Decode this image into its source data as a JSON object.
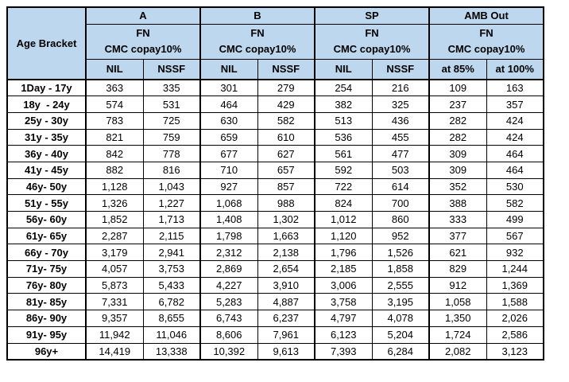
{
  "colors": {
    "header_bg": "#BDD7EE",
    "border": "#000000",
    "text": "#000000",
    "cell_bg": "#FFFFFF"
  },
  "table": {
    "corner_label": "Age Bracket",
    "groups": [
      {
        "label": "A",
        "plan_line1": "FN",
        "plan_line2": "CMC copay10%",
        "columns": [
          "NIL",
          "NSSF"
        ]
      },
      {
        "label": "B",
        "plan_line1": "FN",
        "plan_line2": "CMC copay10%",
        "columns": [
          "NIL",
          "NSSF"
        ]
      },
      {
        "label": "SP",
        "plan_line1": "FN",
        "plan_line2": "CMC copay10%",
        "columns": [
          "NIL",
          "NSSF"
        ]
      },
      {
        "label": "AMB Out",
        "plan_line1": "FN",
        "plan_line2": "CMC copay10%",
        "columns": [
          "at 85%",
          "at 100%"
        ]
      }
    ],
    "rows": [
      {
        "age": "1Day - 17y",
        "values": [
          "363",
          "335",
          "301",
          "279",
          "254",
          "216",
          "109",
          "163"
        ]
      },
      {
        "age": "18y  - 24y",
        "values": [
          "574",
          "531",
          "464",
          "429",
          "382",
          "325",
          "237",
          "357"
        ]
      },
      {
        "age": "25y - 30y",
        "values": [
          "783",
          "725",
          "630",
          "582",
          "513",
          "436",
          "282",
          "424"
        ]
      },
      {
        "age": "31y - 35y",
        "values": [
          "821",
          "759",
          "659",
          "610",
          "536",
          "455",
          "282",
          "424"
        ]
      },
      {
        "age": "36y - 40y",
        "values": [
          "842",
          "778",
          "677",
          "627",
          "561",
          "477",
          "309",
          "464"
        ]
      },
      {
        "age": "41y - 45y",
        "values": [
          "882",
          "816",
          "710",
          "657",
          "592",
          "503",
          "309",
          "464"
        ]
      },
      {
        "age": "46y- 50y",
        "values": [
          "1,128",
          "1,043",
          "927",
          "857",
          "722",
          "614",
          "352",
          "530"
        ]
      },
      {
        "age": "51y - 55y",
        "values": [
          "1,326",
          "1,227",
          "1,068",
          "988",
          "824",
          "700",
          "388",
          "582"
        ]
      },
      {
        "age": "56y- 60y",
        "values": [
          "1,852",
          "1,713",
          "1,408",
          "1,302",
          "1,012",
          "860",
          "333",
          "499"
        ]
      },
      {
        "age": "61y- 65y",
        "values": [
          "2,287",
          "2,115",
          "1,798",
          "1,663",
          "1,120",
          "952",
          "377",
          "567"
        ]
      },
      {
        "age": "66y - 70y",
        "values": [
          "3,179",
          "2,941",
          "2,312",
          "2,138",
          "1,796",
          "1,526",
          "621",
          "932"
        ]
      },
      {
        "age": "71y- 75y",
        "values": [
          "4,057",
          "3,753",
          "2,869",
          "2,654",
          "2,185",
          "1,858",
          "829",
          "1,244"
        ]
      },
      {
        "age": "76y- 80y",
        "values": [
          "5,873",
          "5,433",
          "4,227",
          "3,910",
          "3,006",
          "2,555",
          "912",
          "1,369"
        ]
      },
      {
        "age": "81y- 85y",
        "values": [
          "7,331",
          "6,782",
          "5,283",
          "4,887",
          "3,758",
          "3,195",
          "1,058",
          "1,588"
        ]
      },
      {
        "age": "86y- 90y",
        "values": [
          "9,357",
          "8,655",
          "6,743",
          "6,237",
          "4,797",
          "4,078",
          "1,350",
          "2,026"
        ]
      },
      {
        "age": "91y- 95y",
        "values": [
          "11,942",
          "11,046",
          "8,606",
          "7,961",
          "6,123",
          "5,204",
          "1,724",
          "2,586"
        ]
      },
      {
        "age": "96y+",
        "values": [
          "14,419",
          "13,338",
          "10,392",
          "9,613",
          "7,393",
          "6,284",
          "2,082",
          "3,123"
        ]
      }
    ]
  }
}
